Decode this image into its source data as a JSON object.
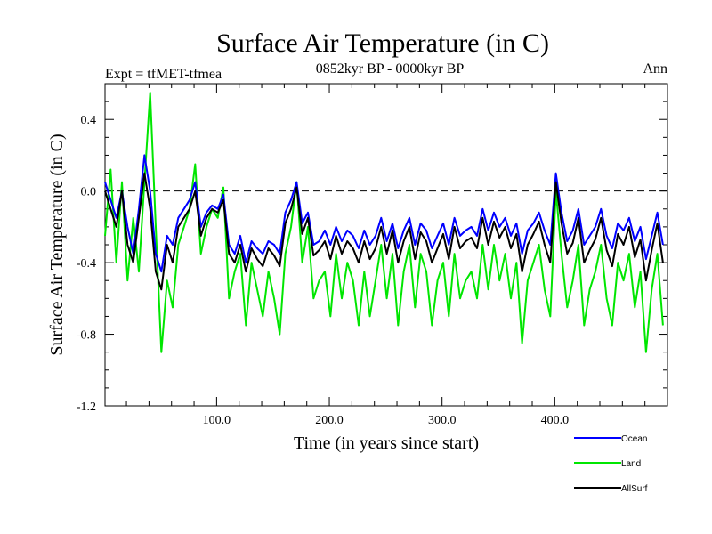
{
  "chart_data": {
    "type": "line",
    "title": "Surface Air Temperature (in C)",
    "subtitle": "0852kyr BP - 0000kyr BP",
    "left_annotation": "Expt = tfMET-tfmea",
    "right_annotation": "Ann",
    "xlabel": "Time (in years since start)",
    "ylabel": "Surface Air Temperature (in C)",
    "xlim": [
      1,
      500
    ],
    "ylim": [
      -1.2,
      0.6
    ],
    "x_ticks": [
      100,
      200,
      300,
      400
    ],
    "x_tick_labels": [
      "100.0",
      "200.0",
      "300.0",
      "400.0"
    ],
    "y_ticks": [
      -1.2,
      -0.8,
      -0.4,
      0.0,
      0.4
    ],
    "y_tick_labels": [
      "-1.2",
      "-0.8",
      "-0.4",
      "0.0",
      "0.4"
    ],
    "reference_line": 0.0,
    "series_x_step": 5,
    "series_x_start": 1,
    "series": [
      {
        "name": "Land",
        "color": "#00e600",
        "values": [
          -0.25,
          0.12,
          -0.4,
          0.05,
          -0.5,
          -0.15,
          -0.45,
          0.05,
          0.55,
          -0.2,
          -0.9,
          -0.5,
          -0.65,
          -0.3,
          -0.2,
          -0.1,
          0.15,
          -0.35,
          -0.2,
          -0.1,
          -0.15,
          0.02,
          -0.6,
          -0.45,
          -0.35,
          -0.75,
          -0.4,
          -0.55,
          -0.7,
          -0.45,
          -0.6,
          -0.8,
          -0.35,
          -0.2,
          0.05,
          -0.4,
          -0.2,
          -0.6,
          -0.5,
          -0.45,
          -0.7,
          -0.35,
          -0.6,
          -0.4,
          -0.5,
          -0.75,
          -0.45,
          -0.7,
          -0.5,
          -0.3,
          -0.6,
          -0.35,
          -0.75,
          -0.45,
          -0.3,
          -0.65,
          -0.35,
          -0.45,
          -0.75,
          -0.5,
          -0.4,
          -0.7,
          -0.35,
          -0.6,
          -0.5,
          -0.45,
          -0.6,
          -0.3,
          -0.55,
          -0.3,
          -0.5,
          -0.35,
          -0.6,
          -0.4,
          -0.85,
          -0.5,
          -0.4,
          -0.3,
          -0.55,
          -0.7,
          0.0,
          -0.35,
          -0.65,
          -0.5,
          -0.3,
          -0.75,
          -0.55,
          -0.45,
          -0.3,
          -0.6,
          -0.75,
          -0.4,
          -0.5,
          -0.35,
          -0.65,
          -0.45,
          -0.9,
          -0.55,
          -0.35,
          -0.75
        ]
      },
      {
        "name": "Ocean",
        "color": "#0000ff",
        "values": [
          0.05,
          -0.05,
          -0.15,
          0.0,
          -0.2,
          -0.35,
          -0.1,
          0.2,
          0.0,
          -0.35,
          -0.45,
          -0.25,
          -0.3,
          -0.15,
          -0.1,
          -0.05,
          0.05,
          -0.2,
          -0.12,
          -0.08,
          -0.1,
          -0.02,
          -0.3,
          -0.35,
          -0.25,
          -0.4,
          -0.28,
          -0.32,
          -0.35,
          -0.28,
          -0.3,
          -0.35,
          -0.12,
          -0.05,
          0.05,
          -0.18,
          -0.12,
          -0.3,
          -0.28,
          -0.22,
          -0.3,
          -0.2,
          -0.28,
          -0.22,
          -0.25,
          -0.32,
          -0.22,
          -0.3,
          -0.25,
          -0.15,
          -0.28,
          -0.18,
          -0.32,
          -0.22,
          -0.15,
          -0.3,
          -0.18,
          -0.22,
          -0.32,
          -0.25,
          -0.18,
          -0.3,
          -0.15,
          -0.25,
          -0.22,
          -0.2,
          -0.25,
          -0.1,
          -0.22,
          -0.12,
          -0.2,
          -0.15,
          -0.25,
          -0.18,
          -0.35,
          -0.22,
          -0.18,
          -0.12,
          -0.22,
          -0.3,
          0.1,
          -0.12,
          -0.28,
          -0.22,
          -0.1,
          -0.3,
          -0.25,
          -0.2,
          -0.1,
          -0.25,
          -0.32,
          -0.18,
          -0.22,
          -0.15,
          -0.28,
          -0.2,
          -0.38,
          -0.25,
          -0.12,
          -0.3
        ]
      },
      {
        "name": "AllSurf",
        "color": "#000000",
        "values": [
          0.0,
          -0.1,
          -0.2,
          0.0,
          -0.3,
          -0.4,
          -0.15,
          0.1,
          -0.1,
          -0.45,
          -0.55,
          -0.3,
          -0.4,
          -0.2,
          -0.15,
          -0.1,
          0.0,
          -0.25,
          -0.15,
          -0.1,
          -0.12,
          -0.05,
          -0.35,
          -0.4,
          -0.3,
          -0.45,
          -0.32,
          -0.38,
          -0.42,
          -0.32,
          -0.36,
          -0.42,
          -0.18,
          -0.1,
          0.02,
          -0.24,
          -0.15,
          -0.36,
          -0.33,
          -0.28,
          -0.38,
          -0.25,
          -0.35,
          -0.28,
          -0.32,
          -0.4,
          -0.28,
          -0.38,
          -0.32,
          -0.2,
          -0.35,
          -0.22,
          -0.4,
          -0.28,
          -0.2,
          -0.38,
          -0.23,
          -0.28,
          -0.4,
          -0.32,
          -0.24,
          -0.38,
          -0.2,
          -0.32,
          -0.28,
          -0.26,
          -0.32,
          -0.15,
          -0.3,
          -0.17,
          -0.26,
          -0.2,
          -0.32,
          -0.24,
          -0.45,
          -0.3,
          -0.24,
          -0.17,
          -0.3,
          -0.4,
          0.05,
          -0.18,
          -0.35,
          -0.29,
          -0.15,
          -0.4,
          -0.33,
          -0.27,
          -0.15,
          -0.33,
          -0.42,
          -0.24,
          -0.3,
          -0.2,
          -0.37,
          -0.27,
          -0.5,
          -0.33,
          -0.18,
          -0.4
        ]
      }
    ],
    "legend": [
      {
        "name": "Ocean",
        "color": "#0000ff"
      },
      {
        "name": "Land",
        "color": "#00e600"
      },
      {
        "name": "AllSurf",
        "color": "#000000"
      }
    ],
    "legend_position": "bottom-right"
  }
}
